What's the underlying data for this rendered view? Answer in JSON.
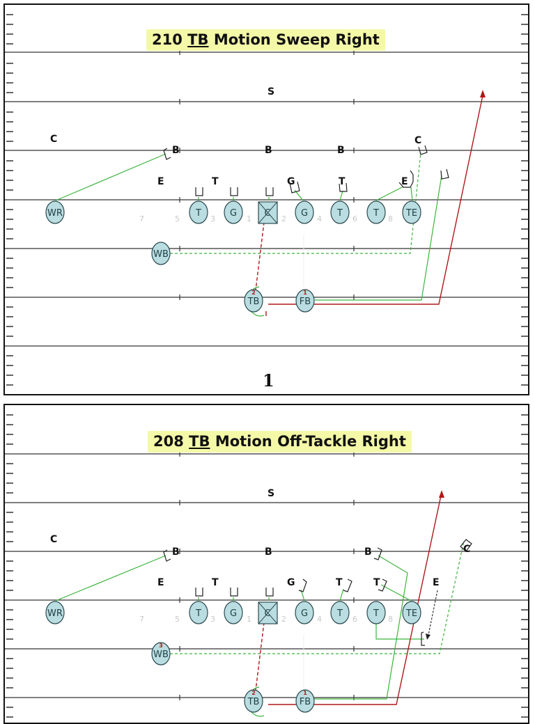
{
  "plays": [
    {
      "number": "210",
      "ball_carrier": "TB",
      "title_rest": "Motion Sweep Right",
      "full_title": "210 TB Motion Sweep Right",
      "page_number": "1",
      "title_bg": "#f4f9a8",
      "defense": [
        "S",
        "C",
        "B",
        "B",
        "B",
        "C",
        "E",
        "T",
        "G",
        "T",
        "E"
      ],
      "offense": [
        "WR",
        "T",
        "G",
        "C",
        "G",
        "T",
        "T",
        "TE",
        "WB",
        "TB",
        "FB"
      ],
      "hole_numbers": [
        "7",
        "5",
        "3",
        "1",
        "2",
        "4",
        "6",
        "8"
      ],
      "sequence_marks": {
        "TB": "2",
        "FB": "1"
      }
    },
    {
      "number": "208",
      "ball_carrier": "TB",
      "title_rest": "Motion Off-Tackle Right",
      "full_title": "208 TB Motion Off-Tackle Right",
      "title_bg": "#f4f9a8",
      "defense": [
        "S",
        "C",
        "B",
        "B",
        "B",
        "C",
        "E",
        "T",
        "G",
        "T",
        "T",
        "E"
      ],
      "offense": [
        "WR",
        "T",
        "G",
        "C",
        "G",
        "T",
        "T",
        "TE",
        "WB",
        "TB",
        "FB"
      ],
      "hole_numbers": [
        "7",
        "5",
        "3",
        "1",
        "2",
        "4",
        "6",
        "8"
      ],
      "sequence_marks": {
        "WB": "3",
        "TB": "2",
        "FB": "1"
      }
    }
  ],
  "colors": {
    "player_fill": "#b9dde0",
    "player_stroke": "#2c4a50",
    "block_line": "#3cb43c",
    "run_path": "#b01818",
    "yard_line": "#333333",
    "hole_number": "#c8c8c8"
  }
}
